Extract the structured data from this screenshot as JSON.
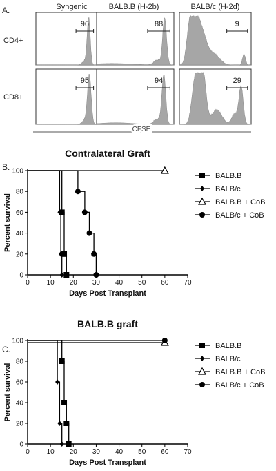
{
  "panel_labels": [
    "A.",
    "B.",
    "C."
  ],
  "panel_a": {
    "column_headers": [
      "Syngenic",
      "BALB.B (H-2b)",
      "BALB/c (H-2d)"
    ],
    "row_labels": [
      "CD4+",
      "CD8+"
    ],
    "xaxis_label": "CFSE",
    "fill_color": "#a6a6a6"
  },
  "chart_data": [
    {
      "type": "histogram",
      "panel": "A",
      "xlabel": "CFSE",
      "columns": [
        "Syngenic",
        "BALB.B (H-2b)",
        "BALB/c (H-2d)"
      ],
      "rows": [
        "CD4+",
        "CD8+"
      ],
      "gate_percentages": [
        [
          96,
          88,
          9
        ],
        [
          95,
          94,
          29
        ]
      ],
      "histograms": [
        [
          {
            "peaks": [
              {
                "c": 0.87,
                "w": 0.025,
                "h": 0.95
              },
              {
                "c": 0.8,
                "w": 0.04,
                "h": 0.08
              }
            ]
          },
          {
            "peaks": [
              {
                "c": 0.88,
                "w": 0.025,
                "h": 0.95
              },
              {
                "c": 0.78,
                "w": 0.04,
                "h": 0.1
              },
              {
                "c": 0.2,
                "w": 0.25,
                "h": 0.03
              }
            ]
          },
          {
            "peaks": [
              {
                "c": 0.22,
                "w": 0.06,
                "h": 0.95
              },
              {
                "c": 0.14,
                "w": 0.04,
                "h": 0.55
              },
              {
                "c": 0.33,
                "w": 0.06,
                "h": 0.5
              },
              {
                "c": 0.48,
                "w": 0.08,
                "h": 0.22
              },
              {
                "c": 0.9,
                "w": 0.02,
                "h": 0.22
              }
            ]
          }
        ],
        [
          {
            "peaks": [
              {
                "c": 0.88,
                "w": 0.03,
                "h": 0.95
              },
              {
                "c": 0.8,
                "w": 0.04,
                "h": 0.08
              }
            ]
          },
          {
            "peaks": [
              {
                "c": 0.87,
                "w": 0.025,
                "h": 0.95
              },
              {
                "c": 0.78,
                "w": 0.04,
                "h": 0.1
              },
              {
                "c": 0.25,
                "w": 0.2,
                "h": 0.03
              }
            ]
          },
          {
            "peaks": [
              {
                "c": 0.27,
                "w": 0.05,
                "h": 0.95
              },
              {
                "c": 0.34,
                "w": 0.04,
                "h": 0.65
              },
              {
                "c": 0.2,
                "w": 0.04,
                "h": 0.45
              },
              {
                "c": 0.52,
                "w": 0.07,
                "h": 0.28
              },
              {
                "c": 0.86,
                "w": 0.03,
                "h": 0.72
              },
              {
                "c": 0.77,
                "w": 0.04,
                "h": 0.2
              }
            ]
          }
        ]
      ]
    },
    {
      "type": "line",
      "panel": "B",
      "title": "Contralateral Graft",
      "xlabel": "Days Post Transplant",
      "ylabel": "Percent survival",
      "xlim": [
        0,
        70
      ],
      "ylim": [
        0,
        100
      ],
      "xticks": [
        0,
        10,
        20,
        30,
        40,
        50,
        60,
        70
      ],
      "yticks": [
        0,
        20,
        40,
        60,
        80,
        100
      ],
      "legend_position": "right",
      "series": [
        {
          "name": "BALB.B",
          "marker": "square",
          "x": [
            0,
            15,
            16,
            17
          ],
          "y": [
            100,
            60,
            20,
            0
          ]
        },
        {
          "name": "BALB/c",
          "marker": "diamond",
          "x": [
            0,
            14,
            14.5,
            15
          ],
          "y": [
            100,
            60,
            20,
            0
          ]
        },
        {
          "name": "BALB.B + CoB",
          "marker": "triangle-open",
          "x": [
            0,
            60
          ],
          "y": [
            100,
            100
          ]
        },
        {
          "name": "BALB/c + CoB",
          "marker": "circle",
          "x": [
            0,
            22,
            25,
            27,
            29,
            30
          ],
          "y": [
            100,
            80,
            60,
            40,
            20,
            0
          ]
        }
      ]
    },
    {
      "type": "line",
      "panel": "C",
      "title": "BALB.B graft",
      "xlabel": "Days Post Transplant",
      "ylabel": "Percent survival",
      "xlim": [
        0,
        70
      ],
      "ylim": [
        0,
        100
      ],
      "xticks": [
        0,
        10,
        20,
        30,
        40,
        50,
        60,
        70
      ],
      "yticks": [
        0,
        20,
        40,
        60,
        80,
        100
      ],
      "legend_position": "right",
      "series": [
        {
          "name": "BALB.B",
          "marker": "square",
          "x": [
            0,
            15,
            16,
            17,
            18
          ],
          "y": [
            100,
            80,
            40,
            20,
            0
          ]
        },
        {
          "name": "BALB/c",
          "marker": "diamond",
          "x": [
            0,
            13,
            14,
            15
          ],
          "y": [
            100,
            60,
            20,
            0
          ]
        },
        {
          "name": "BALB.B + CoB",
          "marker": "triangle-open",
          "x": [
            0,
            60
          ],
          "y": [
            98,
            98
          ]
        },
        {
          "name": "BALB/c + CoB",
          "marker": "circle",
          "x": [
            0,
            60
          ],
          "y": [
            100,
            100
          ]
        }
      ]
    }
  ]
}
